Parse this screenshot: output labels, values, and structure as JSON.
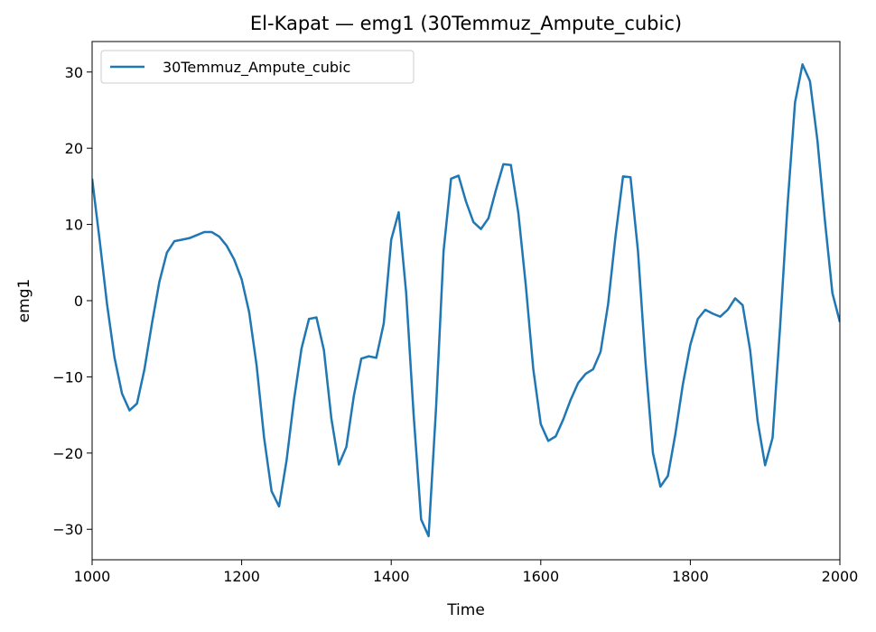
{
  "chart_data": {
    "type": "line",
    "title": "El-Kapat — emg1 (30Temmuz_Ampute_cubic)",
    "xlabel": "Time",
    "ylabel": "emg1",
    "xlim": [
      1000,
      2000
    ],
    "ylim": [
      -34,
      34
    ],
    "xticks": [
      1000,
      1200,
      1400,
      1600,
      1800,
      2000
    ],
    "xtick_labels": [
      "1000",
      "1200",
      "1400",
      "1600",
      "1800",
      "2000"
    ],
    "yticks": [
      -30,
      -20,
      -10,
      0,
      10,
      20,
      30
    ],
    "ytick_labels": [
      "−30",
      "−20",
      "−10",
      "0",
      "10",
      "20",
      "30"
    ],
    "grid": false,
    "legend_position": "upper-left",
    "series": [
      {
        "name": "30Temmuz_Ampute_cubic",
        "color": "#1f77b4",
        "x": [
          1000,
          1010,
          1020,
          1030,
          1040,
          1050,
          1060,
          1070,
          1080,
          1090,
          1100,
          1110,
          1120,
          1130,
          1140,
          1150,
          1160,
          1170,
          1180,
          1190,
          1200,
          1210,
          1220,
          1230,
          1240,
          1250,
          1260,
          1270,
          1280,
          1290,
          1300,
          1310,
          1320,
          1330,
          1340,
          1350,
          1360,
          1370,
          1380,
          1390,
          1400,
          1410,
          1420,
          1430,
          1440,
          1450,
          1460,
          1470,
          1480,
          1490,
          1500,
          1510,
          1520,
          1530,
          1540,
          1550,
          1560,
          1570,
          1580,
          1590,
          1600,
          1610,
          1620,
          1630,
          1640,
          1650,
          1660,
          1670,
          1680,
          1690,
          1700,
          1710,
          1720,
          1730,
          1740,
          1750,
          1760,
          1770,
          1780,
          1790,
          1800,
          1810,
          1820,
          1830,
          1840,
          1850,
          1860,
          1870,
          1880,
          1890,
          1900,
          1910,
          1920,
          1930,
          1940,
          1950,
          1960,
          1970,
          1980,
          1990,
          2000
        ],
        "y": [
          16,
          8,
          -0.5,
          -7.5,
          -12.2,
          -14.4,
          -13.5,
          -9,
          -3,
          2.5,
          6.3,
          7.8,
          8.0,
          8.2,
          8.6,
          9.0,
          9.0,
          8.4,
          7.2,
          5.4,
          2.8,
          -1.5,
          -8.5,
          -18,
          -25,
          -27,
          -21,
          -13,
          -6.3,
          -2.4,
          -2.2,
          -6.5,
          -15.5,
          -21.5,
          -19.2,
          -12.5,
          -7.6,
          -7.3,
          -7.5,
          -3,
          8,
          11.6,
          1,
          -15,
          -28.7,
          -30.9,
          -14,
          6.5,
          16,
          16.4,
          13,
          10.3,
          9.4,
          10.8,
          14.5,
          17.9,
          17.8,
          11.5,
          2,
          -9,
          -16.2,
          -18.4,
          -17.8,
          -15.6,
          -13,
          -10.8,
          -9.6,
          -9,
          -6.7,
          -0.5,
          8.5,
          16.3,
          16.2,
          6.5,
          -8,
          -20,
          -24.4,
          -23,
          -17.5,
          -11,
          -5.8,
          -2.4,
          -1.2,
          -1.7,
          -2.1,
          -1.2,
          0.3,
          -0.6,
          -6.5,
          -15.8,
          -21.6,
          -18,
          -3.5,
          12.5,
          26,
          31.0,
          28.8,
          21,
          10.5,
          1,
          -2.8
        ]
      }
    ]
  }
}
